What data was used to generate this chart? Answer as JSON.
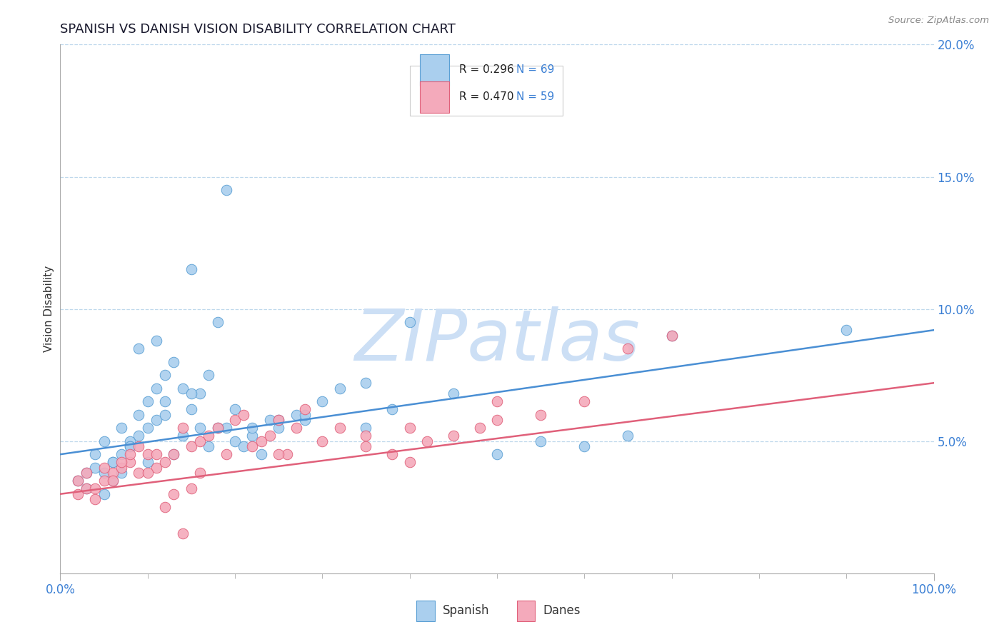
{
  "title": "SPANISH VS DANISH VISION DISABILITY CORRELATION CHART",
  "source": "Source: ZipAtlas.com",
  "ylabel": "Vision Disability",
  "blue_color": "#aacfee",
  "pink_color": "#f4aabb",
  "blue_edge_color": "#5a9fd4",
  "pink_edge_color": "#e0607a",
  "blue_line_color": "#4a8fd4",
  "pink_line_color": "#e0607a",
  "watermark_text": "ZIPatlas",
  "watermark_color": "#ccdff5",
  "R_blue": 0.296,
  "N_blue": 69,
  "R_pink": 0.47,
  "N_pink": 59,
  "blue_line_y0": 4.5,
  "blue_line_y100": 9.2,
  "pink_line_y0": 3.0,
  "pink_line_y100": 7.2,
  "xlim": [
    0,
    100
  ],
  "ylim": [
    0,
    20
  ],
  "ytick_vals": [
    5,
    10,
    15,
    20
  ],
  "ytick_labels": [
    "5.0%",
    "10.0%",
    "15.0%",
    "20.0%"
  ],
  "blue_x": [
    2,
    3,
    4,
    5,
    5,
    6,
    6,
    7,
    7,
    8,
    8,
    9,
    9,
    10,
    10,
    11,
    11,
    12,
    12,
    13,
    14,
    15,
    15,
    16,
    17,
    18,
    19,
    20,
    21,
    22,
    23,
    24,
    25,
    27,
    28,
    30,
    32,
    35,
    38,
    40,
    45,
    50,
    55,
    60,
    65,
    70,
    3,
    4,
    5,
    6,
    7,
    8,
    9,
    10,
    11,
    12,
    13,
    14,
    15,
    16,
    17,
    18,
    19,
    20,
    22,
    25,
    28,
    35,
    90
  ],
  "blue_y": [
    3.5,
    3.2,
    4.0,
    3.8,
    3.0,
    4.2,
    3.5,
    4.5,
    3.8,
    5.0,
    4.8,
    5.2,
    8.5,
    5.5,
    4.2,
    5.8,
    8.8,
    6.0,
    6.5,
    4.5,
    7.0,
    6.2,
    11.5,
    6.8,
    7.5,
    9.5,
    5.5,
    5.0,
    4.8,
    5.2,
    4.5,
    5.8,
    5.5,
    6.0,
    5.8,
    6.5,
    7.0,
    5.5,
    6.2,
    9.5,
    6.8,
    4.5,
    5.0,
    4.8,
    5.2,
    9.0,
    3.8,
    4.5,
    5.0,
    4.2,
    5.5,
    4.8,
    6.0,
    6.5,
    7.0,
    7.5,
    8.0,
    5.2,
    6.8,
    5.5,
    4.8,
    5.5,
    14.5,
    6.2,
    5.5,
    5.8,
    6.0,
    7.2,
    9.2
  ],
  "pink_x": [
    2,
    3,
    4,
    5,
    6,
    7,
    8,
    9,
    10,
    11,
    12,
    13,
    14,
    15,
    16,
    17,
    18,
    19,
    20,
    21,
    22,
    23,
    24,
    25,
    26,
    27,
    28,
    30,
    32,
    35,
    38,
    40,
    42,
    45,
    48,
    50,
    55,
    60,
    65,
    70,
    2,
    3,
    4,
    5,
    6,
    7,
    8,
    9,
    10,
    11,
    12,
    13,
    14,
    15,
    16,
    25,
    35,
    40,
    50
  ],
  "pink_y": [
    3.0,
    3.2,
    2.8,
    3.5,
    3.8,
    4.0,
    4.2,
    3.8,
    4.5,
    4.0,
    4.2,
    4.5,
    5.5,
    4.8,
    5.0,
    5.2,
    5.5,
    4.5,
    5.8,
    6.0,
    4.8,
    5.0,
    5.2,
    5.8,
    4.5,
    5.5,
    6.2,
    5.0,
    5.5,
    4.8,
    4.5,
    4.2,
    5.0,
    5.2,
    5.5,
    5.8,
    6.0,
    6.5,
    8.5,
    9.0,
    3.5,
    3.8,
    3.2,
    4.0,
    3.5,
    4.2,
    4.5,
    4.8,
    3.8,
    4.5,
    2.5,
    3.0,
    1.5,
    3.2,
    3.8,
    4.5,
    5.2,
    5.5,
    6.5
  ]
}
